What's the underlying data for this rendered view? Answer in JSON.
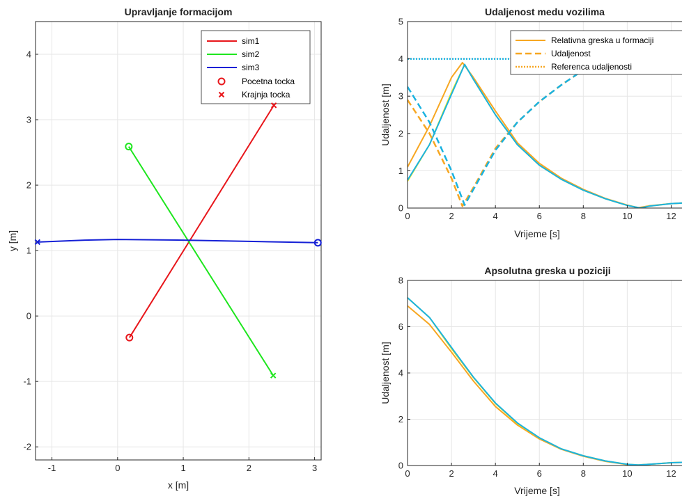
{
  "chart_data": [
    {
      "id": "formation",
      "type": "line",
      "title": "Upravljanje formacijom",
      "xlabel": "x [m]",
      "ylabel": "y [m]",
      "xlim": [
        -1.25,
        3.1
      ],
      "ylim": [
        -2.2,
        4.5
      ],
      "xticks": [
        -1,
        0,
        1,
        2,
        3
      ],
      "yticks": [
        -2,
        -1,
        0,
        1,
        2,
        3,
        4
      ],
      "grid": true,
      "legend_position": "top-right",
      "series": [
        {
          "name": "sim1",
          "color": "#e8161b",
          "x": [
            0.18,
            2.38
          ],
          "y": [
            -0.33,
            3.22
          ],
          "start": [
            0.18,
            -0.33
          ],
          "end": [
            2.38,
            3.22
          ]
        },
        {
          "name": "sim2",
          "color": "#1ee61e",
          "x": [
            0.17,
            2.37
          ],
          "y": [
            2.59,
            -0.91
          ],
          "start": [
            0.17,
            2.59
          ],
          "end": [
            2.37,
            -0.91
          ]
        },
        {
          "name": "sim3",
          "color": "#1520d6",
          "x": [
            3.05,
            2.0,
            1.0,
            0.0,
            -0.5,
            -1.22
          ],
          "y": [
            1.12,
            1.14,
            1.16,
            1.17,
            1.16,
            1.13
          ],
          "start": [
            3.05,
            1.12
          ],
          "end": [
            -1.22,
            1.13
          ]
        }
      ],
      "legend_markers": [
        {
          "label": "Pocetna tocka",
          "marker": "circle-open",
          "color": "#e8161b"
        },
        {
          "label": "Krajnja tocka",
          "marker": "x",
          "color": "#e8161b"
        }
      ]
    },
    {
      "id": "distance",
      "type": "line",
      "title": "Udaljenost medu vozilima",
      "xlabel": "Vrijeme [s]",
      "ylabel": "Udaljenost [m]",
      "xlim": [
        0,
        13
      ],
      "ylim": [
        0,
        5
      ],
      "xticks": [
        0,
        2,
        4,
        6,
        8,
        10,
        12
      ],
      "yticks": [
        0,
        1,
        2,
        3,
        4,
        5
      ],
      "grid": true,
      "legend_position": "top-right",
      "legend": [
        {
          "label": "Relativna greska u formaciji",
          "style": "solid",
          "color": "#f7a722"
        },
        {
          "label": "Udaljenost",
          "style": "dashed",
          "color": "#f7a722"
        },
        {
          "label": "Referenca udaljenosti",
          "style": "dotted",
          "color": "#f7a722"
        }
      ],
      "series": [
        {
          "style": "solid",
          "color": "#f7a722",
          "x": [
            0,
            1,
            2,
            2.5,
            3,
            4,
            5,
            6,
            7,
            8,
            9,
            10,
            10.5,
            11,
            12,
            13
          ],
          "y": [
            1.1,
            2.2,
            3.5,
            3.9,
            3.5,
            2.6,
            1.75,
            1.2,
            0.8,
            0.5,
            0.26,
            0.08,
            0.01,
            0.06,
            0.12,
            0.15
          ]
        },
        {
          "style": "solid",
          "color": "#f0e81c",
          "x": [
            0,
            1,
            2,
            2.6,
            3,
            4,
            5,
            6,
            7,
            8,
            9,
            10,
            10.6,
            11,
            12,
            13
          ],
          "y": [
            0.72,
            1.7,
            3.1,
            3.85,
            3.45,
            2.5,
            1.7,
            1.15,
            0.77,
            0.48,
            0.25,
            0.07,
            0.0,
            0.05,
            0.12,
            0.15
          ]
        },
        {
          "style": "solid",
          "color": "#1ab2e0",
          "x": [
            0,
            1,
            2,
            2.6,
            3,
            4,
            5,
            6,
            7,
            8,
            9,
            10,
            10.6,
            11,
            12,
            13
          ],
          "y": [
            0.75,
            1.7,
            3.05,
            3.85,
            3.45,
            2.5,
            1.7,
            1.15,
            0.77,
            0.48,
            0.25,
            0.07,
            0.0,
            0.05,
            0.12,
            0.15
          ]
        },
        {
          "style": "dashed",
          "color": "#f7a722",
          "x": [
            0,
            1,
            2,
            2.5,
            3,
            4,
            5,
            6,
            7,
            8,
            8.6
          ],
          "y": [
            2.9,
            2.0,
            0.8,
            0.05,
            0.55,
            1.6,
            2.3,
            2.85,
            3.3,
            3.7,
            4.0
          ]
        },
        {
          "style": "dashed",
          "color": "#1ab2e0",
          "x": [
            0,
            1,
            2,
            2.6,
            3,
            4,
            5,
            6,
            7,
            8,
            8.6
          ],
          "y": [
            3.25,
            2.3,
            1.0,
            0.08,
            0.5,
            1.55,
            2.3,
            2.85,
            3.3,
            3.7,
            4.0
          ]
        },
        {
          "style": "dotted",
          "color": "#1ab2e0",
          "x": [
            0,
            13
          ],
          "y": [
            4.0,
            4.0
          ]
        }
      ]
    },
    {
      "id": "abs_error",
      "type": "line",
      "title": "Apsolutna greska u poziciji",
      "xlabel": "Vrijeme [s]",
      "ylabel": "Udaljenost [m]",
      "xlim": [
        0,
        13
      ],
      "ylim": [
        0,
        8
      ],
      "xticks": [
        0,
        2,
        4,
        6,
        8,
        10,
        12
      ],
      "yticks": [
        0,
        2,
        4,
        6,
        8
      ],
      "grid": true,
      "series": [
        {
          "style": "solid",
          "color": "#f7a722",
          "x": [
            0,
            1,
            2,
            3,
            4,
            5,
            6,
            7,
            8,
            9,
            10,
            10.5,
            11,
            12,
            13
          ],
          "y": [
            6.9,
            6.1,
            4.9,
            3.65,
            2.55,
            1.75,
            1.15,
            0.7,
            0.4,
            0.18,
            0.04,
            0.02,
            0.05,
            0.12,
            0.15
          ]
        },
        {
          "style": "solid",
          "color": "#f0e81c",
          "x": [
            0,
            1,
            2,
            3,
            4,
            5,
            6,
            7,
            8,
            9,
            10,
            10.5,
            11,
            12,
            13
          ],
          "y": [
            7.25,
            6.4,
            5.05,
            3.8,
            2.68,
            1.82,
            1.2,
            0.72,
            0.42,
            0.2,
            0.05,
            0.02,
            0.05,
            0.12,
            0.15
          ]
        },
        {
          "style": "solid",
          "color": "#1ab2e0",
          "x": [
            0,
            1,
            2,
            3,
            4,
            5,
            6,
            7,
            8,
            9,
            10,
            10.5,
            11,
            12,
            13
          ],
          "y": [
            7.25,
            6.4,
            5.1,
            3.82,
            2.7,
            1.84,
            1.2,
            0.72,
            0.42,
            0.2,
            0.05,
            0.02,
            0.05,
            0.12,
            0.15
          ]
        }
      ]
    }
  ]
}
